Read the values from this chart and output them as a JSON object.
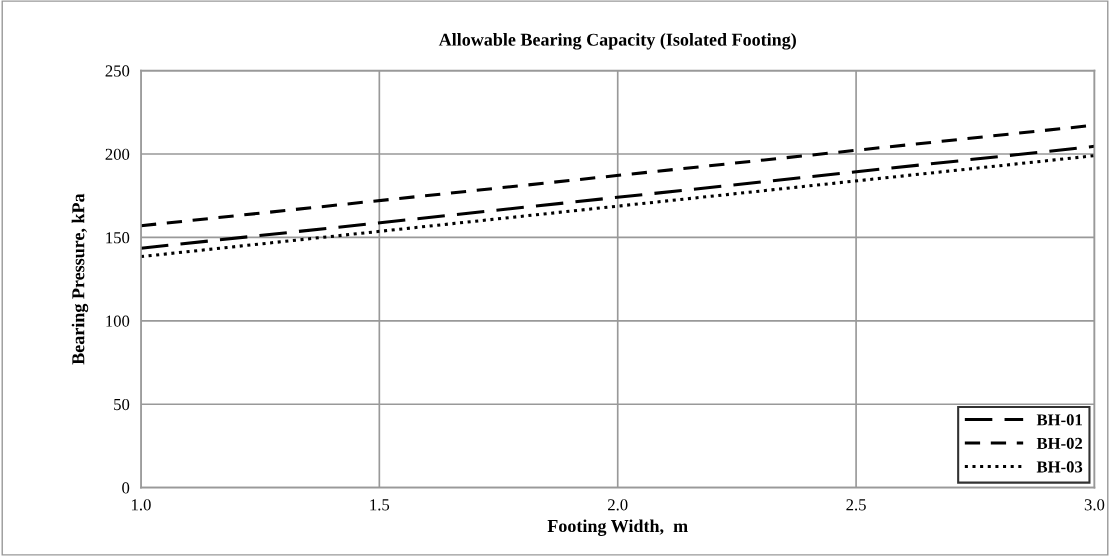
{
  "chart_data": {
    "type": "line",
    "title": "Allowable Bearing Capacity (Isolated Footing)",
    "xlabel": "Footing Width,  m",
    "ylabel": "Bearing Pressure, kPa",
    "x": [
      1.0,
      3.0
    ],
    "series": [
      {
        "name": "BH-01",
        "color": "#000000",
        "values": [
          143.5,
          204.6
        ],
        "line_style": "dashed"
      },
      {
        "name": "BH-02",
        "color": "#000000",
        "values": [
          157,
          217.3
        ],
        "line_style": "dashed"
      },
      {
        "name": "BH-03",
        "color": "#000000",
        "values": [
          138.5,
          199
        ],
        "line_style": "dotted"
      }
    ],
    "xlim": [
      1.0,
      3.0
    ],
    "xticks": [
      {
        "value": 1.0,
        "label": "1.0"
      },
      {
        "value": 1.5,
        "label": "1.5"
      },
      {
        "value": 2.0,
        "label": "2.0"
      },
      {
        "value": 2.5,
        "label": "2.5"
      },
      {
        "value": 3.0,
        "label": "3.0"
      }
    ],
    "ylim": [
      0,
      250
    ],
    "yticks": [
      0,
      50,
      100,
      150,
      200,
      250
    ],
    "grid": true,
    "legend": "bottom right",
    "marker": "none"
  }
}
